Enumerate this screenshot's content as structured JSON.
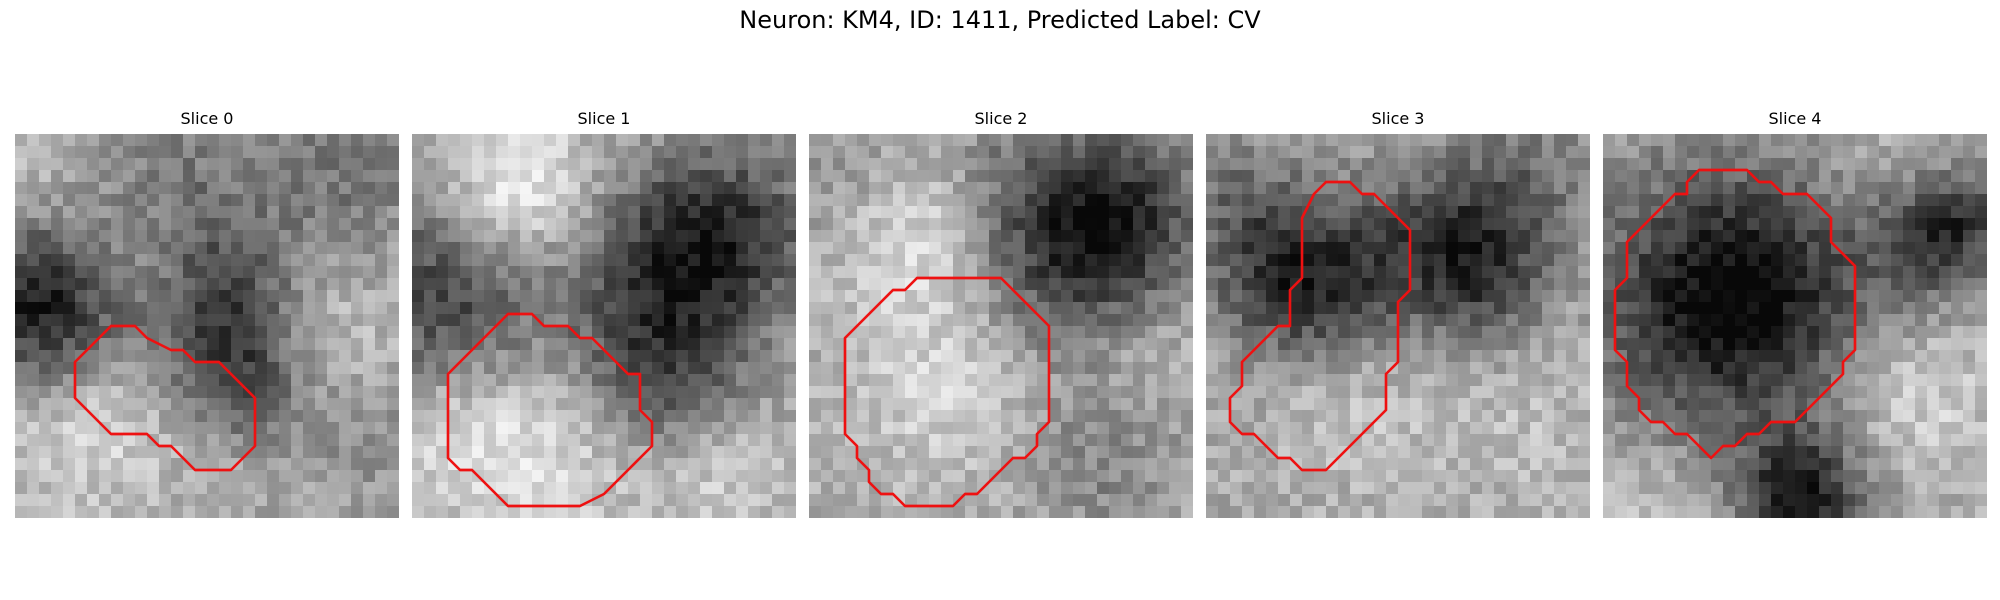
{
  "figure": {
    "suptitle": "Neuron: KM4, ID: 1411, Predicted Label: CV",
    "contour_color": "#ee1111",
    "grid_size": 32
  },
  "slices": [
    {
      "title": "Slice 0",
      "contour": [
        [
          7,
          17
        ],
        [
          8,
          16
        ],
        [
          10,
          16
        ],
        [
          11,
          17
        ],
        [
          13,
          18
        ],
        [
          14,
          18
        ],
        [
          15,
          19
        ],
        [
          17,
          19
        ],
        [
          18,
          20
        ],
        [
          19,
          21
        ],
        [
          20,
          22
        ],
        [
          20,
          26
        ],
        [
          19,
          27
        ],
        [
          18,
          28
        ],
        [
          15,
          28
        ],
        [
          14,
          27
        ],
        [
          13,
          26
        ],
        [
          12,
          26
        ],
        [
          11,
          25
        ],
        [
          8,
          25
        ],
        [
          7,
          24
        ],
        [
          6,
          23
        ],
        [
          5,
          22
        ],
        [
          5,
          19
        ],
        [
          6,
          18
        ]
      ],
      "blobs": [
        {
          "x": 4,
          "y": 15,
          "r": 5,
          "d": -95
        },
        {
          "x": 1,
          "y": 14,
          "r": 5,
          "d": -80
        },
        {
          "x": 17,
          "y": 14,
          "r": 5,
          "d": -90
        },
        {
          "x": 19,
          "y": 20,
          "r": 4,
          "d": -80
        },
        {
          "x": 12,
          "y": 5,
          "r": 6,
          "d": -55
        },
        {
          "x": 28,
          "y": 3,
          "r": 5,
          "d": -50
        },
        {
          "x": 10,
          "y": 11,
          "r": 4,
          "d": 55
        },
        {
          "x": 6,
          "y": 22,
          "r": 6,
          "d": 60
        },
        {
          "x": 25,
          "y": 17,
          "r": 4,
          "d": 40
        },
        {
          "x": 3,
          "y": 4,
          "r": 5,
          "d": 30
        },
        {
          "x": 29,
          "y": 25,
          "r": 4,
          "d": -30
        }
      ]
    },
    {
      "title": "Slice 1",
      "contour": [
        [
          5,
          18
        ],
        [
          6,
          17
        ],
        [
          7,
          16
        ],
        [
          8,
          15
        ],
        [
          10,
          15
        ],
        [
          11,
          16
        ],
        [
          13,
          16
        ],
        [
          14,
          17
        ],
        [
          15,
          17
        ],
        [
          16,
          18
        ],
        [
          17,
          19
        ],
        [
          18,
          20
        ],
        [
          19,
          20
        ],
        [
          19,
          23
        ],
        [
          20,
          24
        ],
        [
          20,
          26
        ],
        [
          19,
          27
        ],
        [
          18,
          28
        ],
        [
          17,
          29
        ],
        [
          16,
          30
        ],
        [
          14,
          31
        ],
        [
          8,
          31
        ],
        [
          7,
          30
        ],
        [
          6,
          29
        ],
        [
          5,
          28
        ],
        [
          4,
          28
        ],
        [
          3,
          27
        ],
        [
          3,
          20
        ]
      ],
      "blobs": [
        {
          "x": 3,
          "y": 13,
          "r": 6,
          "d": -110
        },
        {
          "x": 20,
          "y": 11,
          "r": 6,
          "d": -95
        },
        {
          "x": 27,
          "y": 8,
          "r": 5,
          "d": -90
        },
        {
          "x": 21,
          "y": 20,
          "r": 5,
          "d": -85
        },
        {
          "x": 10,
          "y": 7,
          "r": 5,
          "d": 60
        },
        {
          "x": 8,
          "y": 3,
          "r": 4,
          "d": 50
        },
        {
          "x": 11,
          "y": 26,
          "r": 6,
          "d": 55
        },
        {
          "x": 26,
          "y": 28,
          "r": 4,
          "d": 40
        },
        {
          "x": 3,
          "y": 25,
          "r": 4,
          "d": 35
        }
      ]
    },
    {
      "title": "Slice 2",
      "contour": [
        [
          5,
          15
        ],
        [
          6,
          14
        ],
        [
          7,
          13
        ],
        [
          8,
          13
        ],
        [
          9,
          12
        ],
        [
          16,
          12
        ],
        [
          17,
          13
        ],
        [
          18,
          14
        ],
        [
          19,
          15
        ],
        [
          20,
          16
        ],
        [
          20,
          24
        ],
        [
          19,
          25
        ],
        [
          19,
          26
        ],
        [
          18,
          27
        ],
        [
          17,
          27
        ],
        [
          16,
          28
        ],
        [
          15,
          29
        ],
        [
          14,
          30
        ],
        [
          13,
          30
        ],
        [
          12,
          31
        ],
        [
          8,
          31
        ],
        [
          7,
          30
        ],
        [
          6,
          30
        ],
        [
          5,
          29
        ],
        [
          5,
          28
        ],
        [
          4,
          27
        ],
        [
          4,
          26
        ],
        [
          3,
          25
        ],
        [
          3,
          17
        ],
        [
          4,
          16
        ]
      ],
      "blobs": [
        {
          "x": 22,
          "y": 10,
          "r": 6,
          "d": -110
        },
        {
          "x": 26,
          "y": 6,
          "r": 5,
          "d": -80
        },
        {
          "x": 9,
          "y": 8,
          "r": 5,
          "d": 55
        },
        {
          "x": 12,
          "y": 21,
          "r": 6,
          "d": 45
        },
        {
          "x": 24,
          "y": 27,
          "r": 5,
          "d": -40
        },
        {
          "x": 3,
          "y": 4,
          "r": 4,
          "d": -30
        },
        {
          "x": 16,
          "y": 3,
          "r": 4,
          "d": -25
        },
        {
          "x": 28,
          "y": 18,
          "r": 4,
          "d": 30
        }
      ]
    },
    {
      "title": "Slice 3",
      "contour": [
        [
          9,
          5
        ],
        [
          10,
          4
        ],
        [
          12,
          4
        ],
        [
          13,
          5
        ],
        [
          14,
          5
        ],
        [
          15,
          6
        ],
        [
          16,
          7
        ],
        [
          17,
          8
        ],
        [
          17,
          13
        ],
        [
          16,
          14
        ],
        [
          16,
          19
        ],
        [
          15,
          20
        ],
        [
          15,
          23
        ],
        [
          14,
          24
        ],
        [
          13,
          25
        ],
        [
          12,
          26
        ],
        [
          11,
          27
        ],
        [
          10,
          28
        ],
        [
          8,
          28
        ],
        [
          7,
          27
        ],
        [
          6,
          27
        ],
        [
          5,
          26
        ],
        [
          4,
          25
        ],
        [
          3,
          25
        ],
        [
          2,
          24
        ],
        [
          2,
          22
        ],
        [
          3,
          21
        ],
        [
          3,
          19
        ],
        [
          4,
          18
        ],
        [
          5,
          17
        ],
        [
          6,
          16
        ],
        [
          7,
          16
        ],
        [
          7,
          13
        ],
        [
          8,
          12
        ],
        [
          8,
          7
        ]
      ],
      "blobs": [
        {
          "x": 11,
          "y": 12,
          "r": 5,
          "d": -95
        },
        {
          "x": 21,
          "y": 8,
          "r": 5,
          "d": -85
        },
        {
          "x": 23,
          "y": 12,
          "r": 4,
          "d": -70
        },
        {
          "x": 3,
          "y": 6,
          "r": 4,
          "d": -60
        },
        {
          "x": 6,
          "y": 13,
          "r": 4,
          "d": -70
        },
        {
          "x": 12,
          "y": 22,
          "r": 5,
          "d": 30
        },
        {
          "x": 26,
          "y": 24,
          "r": 5,
          "d": 20
        },
        {
          "x": 28,
          "y": 3,
          "r": 4,
          "d": -40
        }
      ]
    },
    {
      "title": "Slice 4",
      "contour": [
        [
          7,
          4
        ],
        [
          8,
          3
        ],
        [
          12,
          3
        ],
        [
          13,
          4
        ],
        [
          14,
          4
        ],
        [
          15,
          5
        ],
        [
          17,
          5
        ],
        [
          18,
          6
        ],
        [
          19,
          7
        ],
        [
          19,
          9
        ],
        [
          20,
          10
        ],
        [
          21,
          11
        ],
        [
          21,
          18
        ],
        [
          20,
          19
        ],
        [
          20,
          20
        ],
        [
          19,
          21
        ],
        [
          18,
          22
        ],
        [
          17,
          23
        ],
        [
          16,
          24
        ],
        [
          14,
          24
        ],
        [
          13,
          25
        ],
        [
          12,
          25
        ],
        [
          11,
          26
        ],
        [
          10,
          26
        ],
        [
          9,
          27
        ],
        [
          8,
          26
        ],
        [
          7,
          25
        ],
        [
          6,
          25
        ],
        [
          5,
          24
        ],
        [
          4,
          24
        ],
        [
          3,
          23
        ],
        [
          3,
          22
        ],
        [
          2,
          21
        ],
        [
          2,
          19
        ],
        [
          1,
          18
        ],
        [
          1,
          13
        ],
        [
          2,
          12
        ],
        [
          2,
          9
        ],
        [
          3,
          8
        ],
        [
          4,
          7
        ],
        [
          5,
          6
        ],
        [
          6,
          5
        ],
        [
          7,
          5
        ]
      ],
      "blobs": [
        {
          "x": 10,
          "y": 14,
          "r": 8,
          "d": -140
        },
        {
          "x": 13,
          "y": 13,
          "r": 6,
          "d": -40
        },
        {
          "x": 27,
          "y": 9,
          "r": 4,
          "d": -80
        },
        {
          "x": 30,
          "y": 7,
          "r": 3,
          "d": -70
        },
        {
          "x": 17,
          "y": 31,
          "r": 4,
          "d": -110
        },
        {
          "x": 16,
          "y": 29,
          "r": 3,
          "d": -40
        },
        {
          "x": 26,
          "y": 22,
          "r": 5,
          "d": 45
        },
        {
          "x": 4,
          "y": 30,
          "r": 4,
          "d": 30
        },
        {
          "x": 24,
          "y": 3,
          "r": 4,
          "d": 20
        }
      ]
    }
  ]
}
